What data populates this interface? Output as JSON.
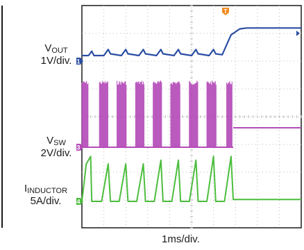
{
  "colors": {
    "background": "#ffffff",
    "screen": "#ffffff",
    "grid": "#b9b9b9",
    "vout_trace": "#2b4ea3",
    "vsw_trace": "#b44bb8",
    "inductor_trace": "#4cbd3d",
    "trigger_marker": "#f08a1e"
  },
  "channels": [
    {
      "name": "V",
      "subscript": "OUT",
      "scale": "1V/div.",
      "marker": "1"
    },
    {
      "name": "V",
      "subscript": "SW",
      "scale": "2V/div.",
      "marker": "3"
    },
    {
      "name": "I",
      "subscript": "INDUCTOR",
      "scale": "5A/div.",
      "marker": "4"
    }
  ],
  "trigger_marker": "T",
  "timebase": "1ms/div.",
  "chart_data": {
    "type": "line",
    "description_of_axes": {
      "x_unit": "ms",
      "x_range": [
        0,
        10
      ],
      "x_divisions": 10,
      "y_divisions": 8,
      "grid": true
    },
    "series": [
      {
        "name": "VOUT",
        "x": [
          0.0,
          0.3,
          0.45,
          0.55,
          0.6,
          1.0,
          1.2,
          1.3,
          1.8,
          2.0,
          2.1,
          2.6,
          2.8,
          2.9,
          3.4,
          3.6,
          3.7,
          4.2,
          4.4,
          4.5,
          5.0,
          5.2,
          5.3,
          5.8,
          6.0,
          6.1,
          6.4,
          6.8,
          7.2,
          7.5,
          10.0
        ],
        "y": [
          0.0,
          0.0,
          0.25,
          0.0,
          0.0,
          0.0,
          0.35,
          0.1,
          0.0,
          0.35,
          0.1,
          0.0,
          0.35,
          0.1,
          0.0,
          0.35,
          0.1,
          0.0,
          0.35,
          0.1,
          0.0,
          0.35,
          0.1,
          0.0,
          0.35,
          0.1,
          0.05,
          1.2,
          1.55,
          1.6,
          1.6
        ]
      },
      {
        "name": "VSW",
        "bursts_ms": [
          [
            0.0,
            0.3
          ],
          [
            0.8,
            1.2
          ],
          [
            1.6,
            2.05
          ],
          [
            2.45,
            2.85
          ],
          [
            3.25,
            3.65
          ],
          [
            4.05,
            4.5
          ],
          [
            4.9,
            5.3
          ],
          [
            5.7,
            6.15
          ],
          [
            6.6,
            6.85
          ]
        ],
        "burst_high_div": 2.4,
        "steady_level_div": 0.7,
        "steady_from_ms": 6.9
      },
      {
        "name": "IINDUCTOR",
        "x": [
          0.0,
          0.2,
          0.4,
          0.45,
          0.9,
          1.2,
          1.3,
          1.7,
          2.0,
          2.1,
          2.5,
          2.8,
          2.9,
          3.3,
          3.6,
          3.7,
          4.1,
          4.4,
          4.5,
          4.9,
          5.2,
          5.3,
          5.7,
          6.0,
          6.1,
          6.5,
          6.8,
          6.9,
          10.0
        ],
        "y": [
          0.0,
          1.0,
          1.2,
          0.0,
          0.0,
          1.0,
          0.0,
          0.0,
          1.0,
          0.0,
          0.0,
          1.0,
          0.0,
          0.0,
          1.1,
          0.0,
          0.0,
          1.1,
          0.0,
          0.0,
          1.1,
          0.0,
          0.0,
          1.2,
          0.0,
          0.0,
          1.2,
          0.05,
          0.05
        ]
      }
    ]
  }
}
